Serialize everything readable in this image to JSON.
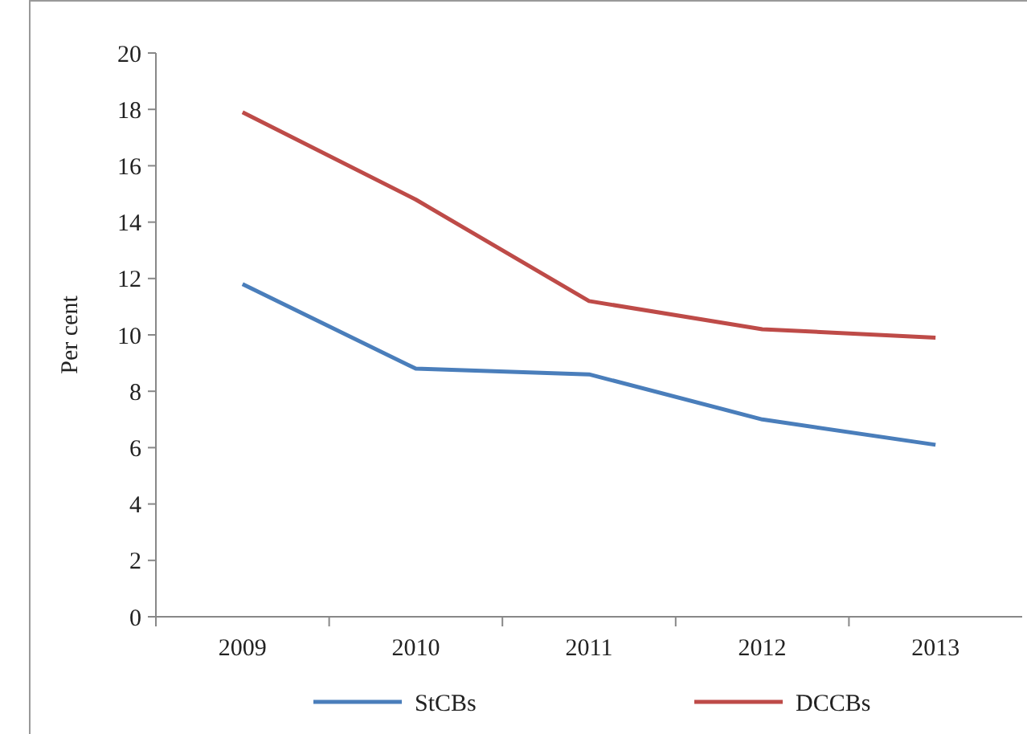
{
  "chart_data": {
    "type": "line",
    "ylabel": "Per cent",
    "categories": [
      "2009",
      "2010",
      "2011",
      "2012",
      "2013"
    ],
    "series": [
      {
        "name": "StCBs",
        "color": "#4a7ebb",
        "values": [
          11.8,
          8.8,
          8.6,
          7.0,
          6.1
        ]
      },
      {
        "name": "DCCBs",
        "color": "#be4b48",
        "values": [
          17.9,
          14.8,
          11.2,
          10.2,
          9.9
        ]
      }
    ],
    "ylim": [
      0,
      20
    ],
    "yticks": [
      0,
      2,
      4,
      6,
      8,
      10,
      12,
      14,
      16,
      18,
      20
    ],
    "grid": false,
    "legend": "bottom",
    "marker": "none",
    "line_style": "solid"
  }
}
